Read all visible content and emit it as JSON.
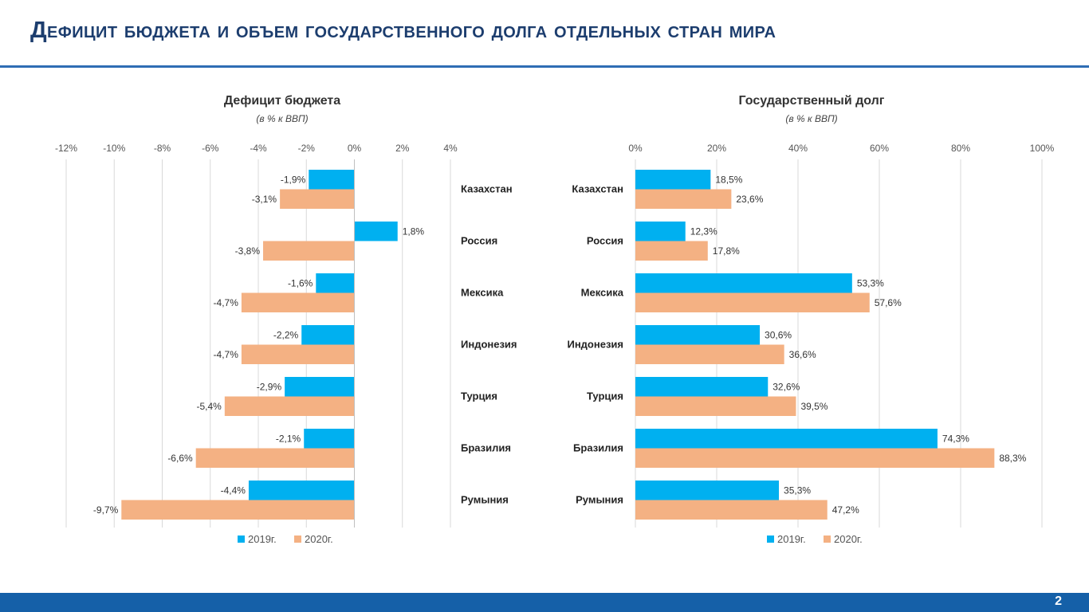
{
  "slide": {
    "title": "Дефицит бюджета и объем государственного долга отдельных стран мира",
    "page_number": "2"
  },
  "colors": {
    "series_2019": "#00b0f0",
    "series_2020": "#f4b183",
    "title": "#1c3d6e",
    "rule": "#2e6db4",
    "footer": "#1560a8"
  },
  "chart_data": [
    {
      "type": "bar",
      "orientation": "horizontal",
      "title": "Дефицит бюджета",
      "subtitle": "(в % к ВВП)",
      "categories": [
        "Казахстан",
        "Россия",
        "Мексика",
        "Индонезия",
        "Турция",
        "Бразилия",
        "Румыния"
      ],
      "series": [
        {
          "name": "2019г.",
          "values": [
            -1.9,
            1.8,
            -1.6,
            -2.2,
            -2.9,
            -2.1,
            -4.4
          ],
          "labels": [
            "-1,9%",
            "1,8%",
            "-1,6%",
            "-2,2%",
            "-2,9%",
            "-2,1%",
            "-4,4%"
          ]
        },
        {
          "name": "2020г.",
          "values": [
            -3.1,
            -3.8,
            -4.7,
            -4.7,
            -5.4,
            -6.6,
            -9.7
          ],
          "labels": [
            "-3,1%",
            "-3,8%",
            "-4,7%",
            "-4,7%",
            "-5,4%",
            "-6,6%",
            "-9,7%"
          ]
        }
      ],
      "xlim": [
        -12,
        4
      ],
      "ticks": [
        -12,
        -10,
        -8,
        -6,
        -4,
        -2,
        0,
        2,
        4
      ],
      "tick_labels": [
        "-12%",
        "-10%",
        "-8%",
        "-6%",
        "-4%",
        "-2%",
        "0%",
        "2%",
        "4%"
      ],
      "grid": true,
      "axis_position": "top",
      "legend": "bottom"
    },
    {
      "type": "bar",
      "orientation": "horizontal",
      "title": "Государственный долг",
      "subtitle": "(в % к ВВП)",
      "categories": [
        "Казахстан",
        "Россия",
        "Мексика",
        "Индонезия",
        "Турция",
        "Бразилия",
        "Румыния"
      ],
      "series": [
        {
          "name": "2019г.",
          "values": [
            18.5,
            12.3,
            53.3,
            30.6,
            32.6,
            74.3,
            35.3
          ],
          "labels": [
            "18,5%",
            "12,3%",
            "53,3%",
            "30,6%",
            "32,6%",
            "74,3%",
            "35,3%"
          ]
        },
        {
          "name": "2020г.",
          "values": [
            23.6,
            17.8,
            57.6,
            36.6,
            39.5,
            88.3,
            47.2
          ],
          "labels": [
            "23,6%",
            "17,8%",
            "57,6%",
            "36,6%",
            "39,5%",
            "88,3%",
            "47,2%"
          ]
        }
      ],
      "xlim": [
        0,
        100
      ],
      "ticks": [
        0,
        20,
        40,
        60,
        80,
        100
      ],
      "tick_labels": [
        "0%",
        "20%",
        "40%",
        "60%",
        "80%",
        "100%"
      ],
      "grid": true,
      "axis_position": "top",
      "legend": "bottom"
    }
  ]
}
